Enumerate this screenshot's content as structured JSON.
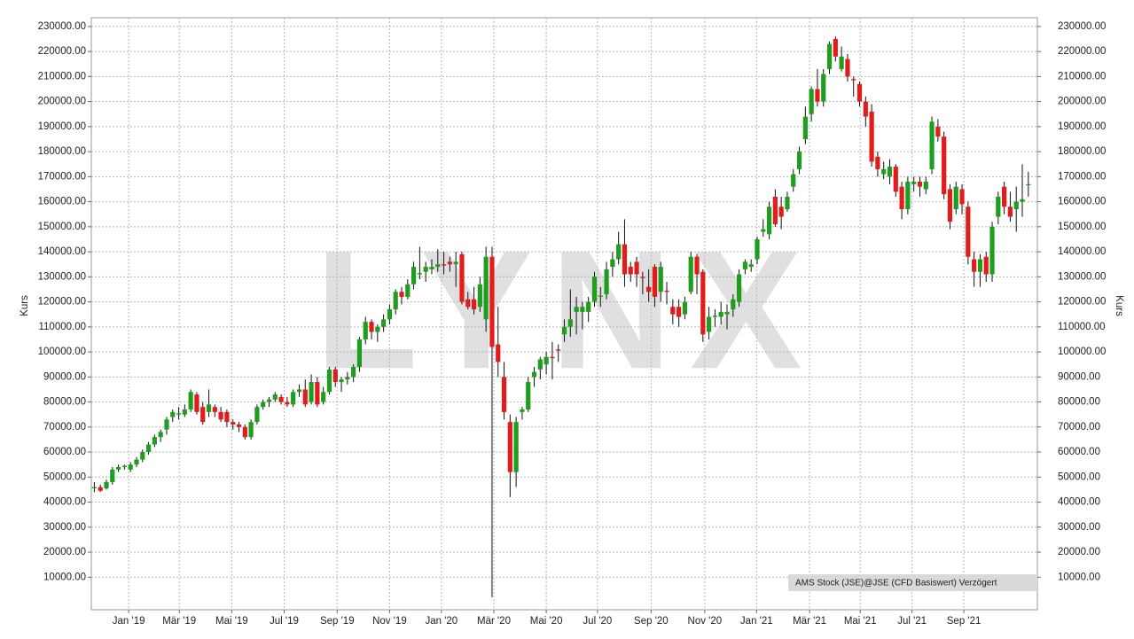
{
  "chart_data": {
    "type": "candlestick",
    "watermark": "LYNX",
    "ylabel": "Kurs",
    "source_label": "AMS Stock (JSE)@JSE (CFD Basiswert) Verzögert",
    "up_color": "#1e9e1e",
    "down_color": "#e41b1b",
    "grid": true,
    "xlim": [
      -0.5,
      156.5
    ],
    "xticks": [
      {
        "value": 5.7,
        "label": "Jan '19"
      },
      {
        "value": 14.1,
        "label": "Mär '19"
      },
      {
        "value": 22.8,
        "label": "Mai '19"
      },
      {
        "value": 31.5,
        "label": "Jul '19"
      },
      {
        "value": 40.3,
        "label": "Sep '19"
      },
      {
        "value": 49.0,
        "label": "Nov '19"
      },
      {
        "value": 57.6,
        "label": "Jan '20"
      },
      {
        "value": 66.3,
        "label": "Mär '20"
      },
      {
        "value": 75.0,
        "label": "Mai '20"
      },
      {
        "value": 83.5,
        "label": "Jul '20"
      },
      {
        "value": 92.4,
        "label": "Sep '20"
      },
      {
        "value": 101.3,
        "label": "Nov '20"
      },
      {
        "value": 109.9,
        "label": "Jan '21"
      },
      {
        "value": 118.7,
        "label": "Mär '21"
      },
      {
        "value": 127.1,
        "label": "Mai '21"
      },
      {
        "value": 135.7,
        "label": "Jul '21"
      },
      {
        "value": 144.3,
        "label": "Sep '21"
      }
    ],
    "ylim": [
      -3000,
      233500
    ],
    "yticks": [
      {
        "value": 10000,
        "label": "10000.00"
      },
      {
        "value": 20000,
        "label": "20000.00"
      },
      {
        "value": 30000,
        "label": "30000.00"
      },
      {
        "value": 40000,
        "label": "40000.00"
      },
      {
        "value": 50000,
        "label": "50000.00"
      },
      {
        "value": 60000,
        "label": "60000.00"
      },
      {
        "value": 70000,
        "label": "70000.00"
      },
      {
        "value": 80000,
        "label": "80000.00"
      },
      {
        "value": 90000,
        "label": "90000.00"
      },
      {
        "value": 100000,
        "label": "100000.00"
      },
      {
        "value": 110000,
        "label": "110000.00"
      },
      {
        "value": 120000,
        "label": "120000.00"
      },
      {
        "value": 130000,
        "label": "130000.00"
      },
      {
        "value": 140000,
        "label": "140000.00"
      },
      {
        "value": 150000,
        "label": "150000.00"
      },
      {
        "value": 160000,
        "label": "160000.00"
      },
      {
        "value": 170000,
        "label": "170000.00"
      },
      {
        "value": 180000,
        "label": "180000.00"
      },
      {
        "value": 190000,
        "label": "190000.00"
      },
      {
        "value": 200000,
        "label": "200000.00"
      },
      {
        "value": 210000,
        "label": "210000.00"
      },
      {
        "value": 220000,
        "label": "220000.00"
      },
      {
        "value": 230000,
        "label": "230000.00"
      }
    ],
    "open": [
      45500,
      46000,
      45500,
      48000,
      53000,
      54000,
      53000,
      55000,
      57000,
      60000,
      63000,
      66000,
      69000,
      74000,
      75000,
      75000,
      77000,
      83000,
      78000,
      76000,
      78000,
      76000,
      76000,
      72000,
      71000,
      70000,
      66000,
      72000,
      78000,
      80000,
      81000,
      82000,
      80000,
      79000,
      84000,
      85000,
      80000,
      88000,
      80000,
      84000,
      93000,
      88000,
      89000,
      90000,
      94000,
      105000,
      112000,
      108000,
      110000,
      113000,
      117000,
      124000,
      122000,
      127000,
      131000,
      132000,
      133000,
      134000,
      135000,
      136000,
      135000,
      139000,
      121000,
      121000,
      118000,
      113000,
      138000,
      103000,
      90000,
      72000,
      52000,
      76000,
      77000,
      90000,
      93000,
      95000,
      98000,
      101000,
      107000,
      110000,
      116000,
      116000,
      116000,
      120000,
      122000,
      123000,
      134000,
      137000,
      143000,
      134000,
      136000,
      130000,
      126000,
      134000,
      124000,
      124500,
      118000,
      118000,
      115000,
      124000,
      138000,
      132000,
      108000,
      114000,
      114000,
      115000,
      117000,
      120000,
      133000,
      134000,
      137000,
      148000,
      147000,
      162000,
      158000,
      157000,
      166000,
      173000,
      185000,
      195000,
      205000,
      200000,
      213000,
      225000,
      213000,
      217000,
      209000,
      207000,
      200000,
      196000,
      178000,
      171000,
      170000,
      174000,
      166000,
      157000,
      167000,
      168000,
      165000,
      173000,
      190000,
      186000,
      165000,
      157000,
      165000,
      158000,
      137000,
      132000,
      138000,
      131000,
      154000,
      166000,
      158000,
      157000,
      160000,
      167000
    ],
    "high": [
      48000,
      47000,
      49000,
      54000,
      55000,
      55000,
      56000,
      58000,
      61000,
      64000,
      67000,
      69000,
      74000,
      77000,
      78000,
      79000,
      85000,
      84000,
      80000,
      85000,
      79000,
      78000,
      77000,
      73000,
      72000,
      71000,
      73000,
      79000,
      81000,
      82000,
      84000,
      83000,
      82000,
      85000,
      87000,
      89000,
      91000,
      90000,
      86000,
      94000,
      94000,
      90000,
      92000,
      95000,
      106000,
      114000,
      113000,
      111000,
      115000,
      119000,
      125000,
      126000,
      129000,
      136000,
      142000,
      136000,
      137000,
      141000,
      140000,
      138000,
      140000,
      140000,
      124000,
      126000,
      130000,
      142000,
      142000,
      118000,
      96000,
      75000,
      74000,
      78000,
      90000,
      94000,
      98000,
      100000,
      104000,
      103000,
      113000,
      125000,
      122000,
      120000,
      122000,
      132000,
      126000,
      136000,
      140000,
      148000,
      153000,
      136000,
      138000,
      132000,
      133000,
      135000,
      136000,
      128000,
      121000,
      121000,
      122000,
      140000,
      139000,
      133000,
      118000,
      117000,
      120000,
      119000,
      123000,
      133000,
      137000,
      137000,
      146000,
      153000,
      160000,
      165000,
      162000,
      164000,
      173000,
      182000,
      198000,
      206000,
      213000,
      213000,
      224000,
      226000,
      222000,
      219000,
      210000,
      208000,
      202000,
      199000,
      180000,
      176000,
      177000,
      175000,
      168000,
      170000,
      170000,
      170000,
      170000,
      194000,
      193000,
      188000,
      167000,
      168000,
      167000,
      160000,
      140000,
      139000,
      140000,
      152000,
      164000,
      168000,
      164000,
      166000,
      175000,
      172000
    ],
    "low": [
      44000,
      44000,
      45000,
      47000,
      52000,
      53000,
      52000,
      54000,
      56000,
      59000,
      62000,
      64000,
      67000,
      72000,
      73000,
      74000,
      76000,
      75000,
      71000,
      74000,
      74000,
      72000,
      70000,
      69000,
      68000,
      65000,
      65000,
      71000,
      77000,
      78000,
      80000,
      79000,
      78000,
      78000,
      82000,
      78000,
      79000,
      78000,
      79000,
      83000,
      86000,
      84000,
      87000,
      88000,
      92000,
      103000,
      105000,
      104000,
      108000,
      111000,
      115000,
      119000,
      121000,
      125000,
      129000,
      128000,
      131000,
      132000,
      131000,
      132000,
      126000,
      119000,
      117000,
      115000,
      116000,
      108000,
      2000,
      90000,
      73000,
      42000,
      46000,
      73000,
      76000,
      86000,
      89000,
      91000,
      89000,
      96000,
      104000,
      106000,
      107000,
      109000,
      112000,
      118000,
      118000,
      121000,
      130000,
      135000,
      126000,
      128000,
      126000,
      123000,
      120000,
      118000,
      120000,
      119000,
      111000,
      110000,
      113000,
      123000,
      123000,
      104000,
      105000,
      110000,
      111000,
      109000,
      114000,
      118000,
      131000,
      132000,
      135000,
      146000,
      145000,
      150000,
      149000,
      156000,
      164000,
      171000,
      183000,
      192000,
      198000,
      198000,
      211000,
      216000,
      212000,
      208000,
      202000,
      198000,
      190000,
      174000,
      170000,
      169000,
      167000,
      162000,
      153000,
      155000,
      164000,
      162000,
      163000,
      171000,
      184000,
      161000,
      149000,
      155000,
      155000,
      135000,
      126000,
      126000,
      128000,
      128000,
      151000,
      155000,
      152000,
      148000,
      154000,
      162000
    ],
    "close": [
      46000,
      44500,
      48000,
      53000,
      54000,
      54500,
      55000,
      57000,
      60000,
      63000,
      66000,
      68000,
      73000,
      76000,
      75500,
      77000,
      84000,
      76000,
      72000,
      79000,
      76000,
      73000,
      72000,
      71000,
      70000,
      66000,
      72000,
      78000,
      80000,
      81000,
      83000,
      80000,
      79000,
      84000,
      85000,
      79000,
      88000,
      79000,
      84000,
      93000,
      88000,
      89000,
      90000,
      94000,
      105000,
      112000,
      108000,
      110000,
      113000,
      117000,
      124000,
      122000,
      127000,
      134000,
      131500,
      134000,
      134000,
      135000,
      134500,
      135000,
      136000,
      120000,
      118000,
      117000,
      127000,
      138000,
      102000,
      96000,
      76000,
      52000,
      72000,
      77000,
      88000,
      92000,
      97000,
      98000,
      97500,
      100500,
      110000,
      113000,
      118000,
      118000,
      120000,
      130000,
      122500,
      133000,
      137000,
      143000,
      131000,
      131000,
      131000,
      129500,
      124000,
      122000,
      134000,
      124000,
      115000,
      114000,
      120000,
      138000,
      131000,
      107000,
      114000,
      114500,
      116000,
      116000,
      121000,
      131000,
      136000,
      135000,
      145000,
      149000,
      158000,
      151000,
      154000,
      162000,
      171000,
      180000,
      194000,
      205000,
      200000,
      211000,
      223000,
      218000,
      218000,
      210000,
      208500,
      200000,
      194000,
      176000,
      173000,
      173000,
      174000,
      164000,
      157000,
      168000,
      168000,
      166000,
      168000,
      192000,
      186000,
      163000,
      152000,
      166000,
      159000,
      138000,
      132000,
      137000,
      131000,
      150000,
      162000,
      158000,
      154000,
      160000,
      161000,
      167000
    ]
  }
}
